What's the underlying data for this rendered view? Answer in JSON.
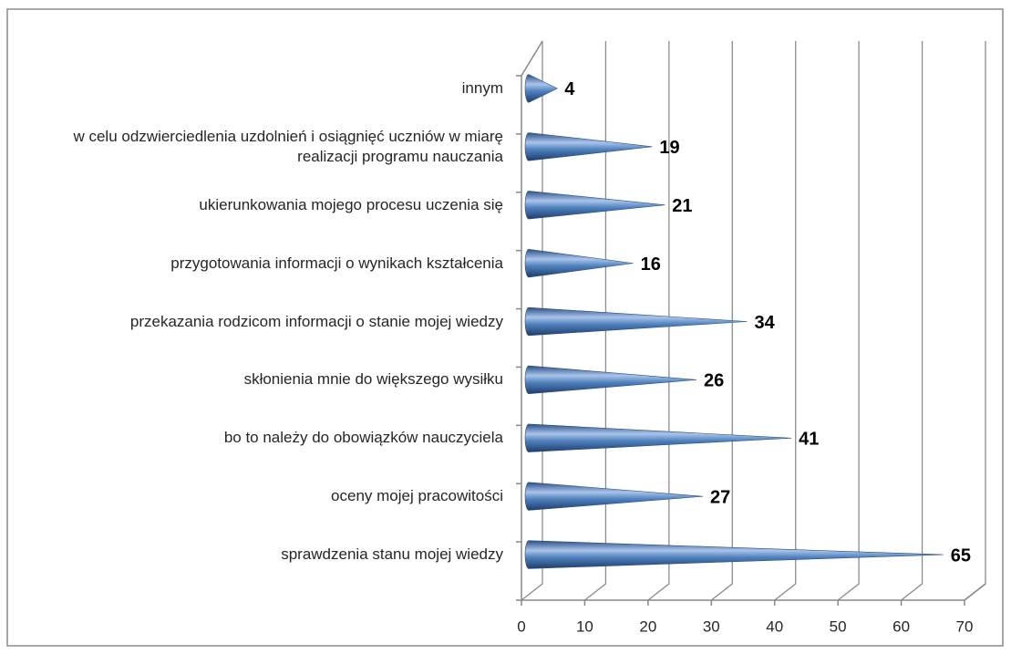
{
  "chart_data": {
    "type": "bar",
    "orientation": "horizontal",
    "shape": "cone",
    "categories": [
      "sprawdzenia stanu mojej wiedzy",
      "oceny mojej pracowitości",
      "bo to należy do obowiązków nauczyciela",
      "skłonienia mnie do większego wysiłku",
      "przekazania rodzicom informacji o stanie mojej wiedzy",
      "przygotowania informacji o wynikach kształcenia",
      "ukierunkowania mojego procesu uczenia się",
      "w celu odzwierciedlenia uzdolnień i osiągnięć uczniów w miarę realizacji programu nauczania",
      "innym"
    ],
    "values": [
      65,
      27,
      41,
      26,
      34,
      16,
      21,
      19,
      4
    ],
    "color": "#4f81bd",
    "xlim": [
      0,
      70
    ],
    "xticks": [
      0,
      10,
      20,
      30,
      40,
      50,
      60,
      70
    ],
    "grid": true
  }
}
